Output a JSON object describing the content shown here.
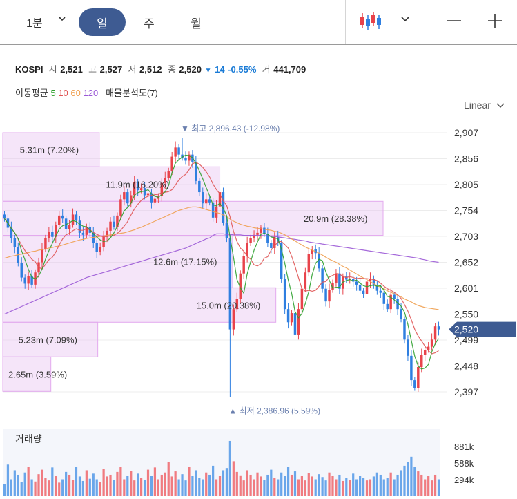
{
  "toolbar": {
    "period_select": "1분",
    "tabs": [
      {
        "label": "일",
        "active": true
      },
      {
        "label": "주",
        "active": false
      },
      {
        "label": "월",
        "active": false
      }
    ],
    "icons": [
      "candlestick-chart-icon",
      "chevron-down-icon",
      "zoom-out-icon",
      "zoom-in-icon"
    ]
  },
  "quote": {
    "symbol": "KOSPI",
    "open_label": "시",
    "open": "2,521",
    "high_label": "고",
    "high": "2,527",
    "low_label": "저",
    "low": "2,512",
    "close_label": "종",
    "close": "2,520",
    "change_arrow": "▼",
    "change": "14",
    "change_pct": "-0.55%",
    "volume_label": "거",
    "volume": "441,709"
  },
  "indicators": {
    "ma_label": "이동평균",
    "ma_periods": [
      {
        "label": "5",
        "color": "#2ca02c"
      },
      {
        "label": "10",
        "color": "#e05555"
      },
      {
        "label": "60",
        "color": "#f0a050"
      },
      {
        "label": "120",
        "color": "#9b59d6"
      }
    ],
    "profile_label": "매물분석도(7)"
  },
  "scale_mode": "Linear",
  "colors": {
    "up": "#e8434b",
    "down": "#2f7fe0",
    "accent": "#3e5b92",
    "profile": "#e9c6f1"
  },
  "chart_data": {
    "type": "candlestick",
    "y_ticks": [
      "2,907",
      "2,856",
      "2,805",
      "2,754",
      "2,703",
      "2,652",
      "2,601",
      "2,550",
      "2,499",
      "2,448",
      "2,397"
    ],
    "y_tick_values": [
      2907,
      2856,
      2805,
      2754,
      2703,
      2652,
      2601,
      2550,
      2499,
      2448,
      2397
    ],
    "ylim": [
      2378,
      2922
    ],
    "current_price": "2,520",
    "current_value": 2520,
    "max_annotation": {
      "text": "▼ 최고 2,896.43 (-12.98%)",
      "value": 2896.43,
      "bar_index": 52
    },
    "min_annotation": {
      "text": "▲ 최저 2,386.96 (5.59%)",
      "value": 2386.96,
      "bar_index": 66
    },
    "volume_profile": [
      {
        "label": "5.31m (7.20%)",
        "low": 2840,
        "high": 2907,
        "pct": 7.2
      },
      {
        "label": "11.9m (16.20%)",
        "low": 2772,
        "high": 2840,
        "pct": 16.2
      },
      {
        "label": "20.9m (28.38%)",
        "low": 2705,
        "high": 2772,
        "pct": 28.38
      },
      {
        "label": "12.6m (17.15%)",
        "low": 2602,
        "high": 2705,
        "pct": 17.15
      },
      {
        "label": "15.0m (20.38%)",
        "low": 2534,
        "high": 2602,
        "pct": 20.38
      },
      {
        "label": "5.23m (7.09%)",
        "low": 2466,
        "high": 2534,
        "pct": 7.09
      },
      {
        "label": "2.65m (3.59%)",
        "low": 2398,
        "high": 2466,
        "pct": 3.59
      }
    ],
    "closes": [
      2738,
      2720,
      2700,
      2682,
      2650,
      2622,
      2610,
      2625,
      2608,
      2632,
      2652,
      2678,
      2700,
      2712,
      2702,
      2726,
      2744,
      2738,
      2718,
      2726,
      2746,
      2734,
      2710,
      2706,
      2722,
      2710,
      2690,
      2672,
      2682,
      2702,
      2714,
      2732,
      2722,
      2744,
      2776,
      2790,
      2768,
      2784,
      2810,
      2794,
      2798,
      2784,
      2788,
      2770,
      2777,
      2782,
      2808,
      2818,
      2832,
      2860,
      2878,
      2864,
      2858,
      2852,
      2864,
      2850,
      2812,
      2790,
      2768,
      2776,
      2770,
      2740,
      2762,
      2790,
      2730,
      2700,
      2520,
      2560,
      2580,
      2630,
      2664,
      2690,
      2700,
      2706,
      2710,
      2720,
      2708,
      2690,
      2680,
      2702,
      2690,
      2620,
      2560,
      2534,
      2552,
      2510,
      2560,
      2600,
      2632,
      2668,
      2678,
      2670,
      2640,
      2600,
      2575,
      2598,
      2612,
      2630,
      2600,
      2624,
      2618,
      2620,
      2614,
      2608,
      2596,
      2590,
      2614,
      2620,
      2606,
      2596,
      2592,
      2570,
      2560,
      2588,
      2580,
      2560,
      2540,
      2500,
      2468,
      2420,
      2405,
      2446,
      2470,
      2480,
      2486,
      2500,
      2526,
      2520
    ],
    "ma": {
      "5": [
        2738,
        2729,
        2719,
        2710,
        2698,
        2675,
        2657,
        2638,
        2623,
        2619,
        2625,
        2639,
        2658,
        2675,
        2689,
        2704,
        2717,
        2724,
        2726,
        2730,
        2734,
        2732,
        2727,
        2723,
        2722,
        2716,
        2708,
        2702,
        2696,
        2693,
        2694,
        2700,
        2710,
        2723,
        2738,
        2753,
        2760,
        2768,
        2784,
        2789,
        2791,
        2792,
        2795,
        2787,
        2782,
        2780,
        2785,
        2791,
        2803,
        2828,
        2847,
        2854,
        2859,
        2863,
        2862,
        2858,
        2847,
        2832,
        2816,
        2799,
        2783,
        2765,
        2763,
        2768,
        2758,
        2744,
        2700,
        2662,
        2618,
        2602,
        2591,
        2629,
        2653,
        2676,
        2692,
        2707,
        2709,
        2707,
        2702,
        2700,
        2698,
        2678,
        2650,
        2617,
        2591,
        2555,
        2543,
        2551,
        2571,
        2594,
        2628,
        2650,
        2658,
        2655,
        2633,
        2617,
        2601,
        2603,
        2603,
        2613,
        2616,
        2618,
        2615,
        2617,
        2611,
        2606,
        2604,
        2606,
        2607,
        2605,
        2606,
        2597,
        2585,
        2583,
        2578,
        2572,
        2566,
        2554,
        2530,
        2498,
        2467,
        2448,
        2442,
        2444,
        2451,
        2476,
        2492,
        2502
      ],
      "10": [
        2738,
        2729,
        2719,
        2710,
        2698,
        2686,
        2675,
        2667,
        2658,
        2653,
        2642,
        2639,
        2648,
        2657,
        2662,
        2672,
        2686,
        2698,
        2706,
        2709,
        2714,
        2718,
        2715,
        2715,
        2718,
        2716,
        2711,
        2707,
        2704,
        2702,
        2703,
        2704,
        2705,
        2709,
        2715,
        2723,
        2732,
        2745,
        2757,
        2766,
        2774,
        2779,
        2782,
        2784,
        2785,
        2786,
        2789,
        2790,
        2791,
        2795,
        2804,
        2814,
        2821,
        2825,
        2834,
        2846,
        2849,
        2845,
        2839,
        2830,
        2820,
        2806,
        2795,
        2787,
        2773,
        2764,
        2741,
        2713,
        2693,
        2680,
        2674,
        2664,
        2658,
        2647,
        2645,
        2649,
        2660,
        2663,
        2676,
        2684,
        2692,
        2693,
        2687,
        2680,
        2664,
        2644,
        2622,
        2600,
        2595,
        2597,
        2595,
        2597,
        2605,
        2613,
        2614,
        2623,
        2626,
        2630,
        2629,
        2624,
        2622,
        2624,
        2622,
        2620,
        2621,
        2620,
        2620,
        2619,
        2618,
        2616,
        2611,
        2605,
        2600,
        2597,
        2593,
        2588,
        2581,
        2569,
        2556,
        2539,
        2520,
        2507,
        2497,
        2487,
        2478,
        2472,
        2474,
        2478
      ],
      "60": [
        2660,
        2662,
        2664,
        2665,
        2667,
        2668,
        2670,
        2671,
        2673,
        2674,
        2676,
        2677,
        2678,
        2680,
        2681,
        2683,
        2684,
        2686,
        2688,
        2690,
        2692,
        2694,
        2696,
        2697,
        2699,
        2700,
        2701,
        2702,
        2703,
        2704,
        2705,
        2706,
        2707,
        2708,
        2709,
        2710,
        2712,
        2714,
        2716,
        2719,
        2721,
        2724,
        2727,
        2730,
        2733,
        2736,
        2739,
        2742,
        2745,
        2748,
        2751,
        2754,
        2756,
        2758,
        2760,
        2761,
        2761,
        2760,
        2758,
        2756,
        2754,
        2752,
        2750,
        2748,
        2745,
        2742,
        2737,
        2733,
        2730,
        2727,
        2725,
        2723,
        2722,
        2720,
        2719,
        2718,
        2717,
        2716,
        2715,
        2713,
        2712,
        2709,
        2706,
        2702,
        2698,
        2694,
        2690,
        2686,
        2682,
        2679,
        2676,
        2673,
        2670,
        2666,
        2662,
        2658,
        2655,
        2652,
        2648,
        2644,
        2641,
        2637,
        2633,
        2629,
        2625,
        2621,
        2618,
        2614,
        2610,
        2606,
        2603,
        2600,
        2596,
        2593,
        2590,
        2587,
        2584,
        2580,
        2577,
        2574,
        2570,
        2567,
        2565,
        2563,
        2562,
        2561,
        2560,
        2559
      ],
      "120": [
        2550,
        2553,
        2556,
        2559,
        2562,
        2565,
        2568,
        2571,
        2574,
        2577,
        2580,
        2583,
        2586,
        2589,
        2592,
        2595,
        2598,
        2601,
        2604,
        2607,
        2610,
        2613,
        2616,
        2619,
        2622,
        2624,
        2626,
        2628,
        2630,
        2632,
        2634,
        2636,
        2638,
        2640,
        2642,
        2644,
        2646,
        2648,
        2650,
        2652,
        2654,
        2656,
        2658,
        2660,
        2662,
        2664,
        2666,
        2668,
        2670,
        2672,
        2674,
        2676,
        2678,
        2680,
        2683,
        2686,
        2689,
        2692,
        2695,
        2698,
        2700,
        2705,
        2708,
        2708,
        2708,
        2707,
        2707,
        2706,
        2706,
        2706,
        2705,
        2705,
        2705,
        2705,
        2705,
        2705,
        2704,
        2704,
        2703,
        2703,
        2702,
        2701,
        2700,
        2699,
        2698,
        2697,
        2696,
        2695,
        2694,
        2692,
        2691,
        2690,
        2689,
        2688,
        2687,
        2686,
        2685,
        2684,
        2683,
        2682,
        2681,
        2680,
        2679,
        2678,
        2677,
        2676,
        2675,
        2674,
        2673,
        2672,
        2671,
        2670,
        2669,
        2668,
        2667,
        2666,
        2665,
        2664,
        2663,
        2662,
        2661,
        2660,
        2658,
        2657,
        2655,
        2654,
        2653,
        2652
      ]
    },
    "volume_label": "거래량",
    "volume_ticks": [
      "881k",
      "588k",
      "294k"
    ],
    "volume_tick_values": [
      881,
      588,
      294
    ],
    "volume_ylim": [
      0,
      1200
    ],
    "volumes": [
      210,
      560,
      300,
      460,
      380,
      250,
      420,
      520,
      300,
      260,
      390,
      470,
      330,
      280,
      510,
      360,
      240,
      300,
      430,
      380,
      290,
      520,
      350,
      270,
      460,
      310,
      400,
      300,
      250,
      480,
      350,
      380,
      290,
      430,
      520,
      300,
      360,
      450,
      280,
      400,
      330,
      290,
      470,
      360,
      510,
      300,
      380,
      420,
      610,
      350,
      440,
      300,
      390,
      280,
      520,
      360,
      460,
      330,
      300,
      420,
      380,
      540,
      300,
      360,
      460,
      500,
      980,
      620,
      430,
      370,
      280,
      460,
      380,
      300,
      420,
      350,
      290,
      380,
      470,
      330,
      300,
      420,
      360,
      520,
      380,
      440,
      300,
      360,
      280,
      410,
      350,
      300,
      390,
      340,
      280,
      420,
      360,
      300,
      380,
      270,
      330,
      290,
      400,
      300,
      360,
      320,
      280,
      300,
      350,
      420,
      380,
      300,
      330,
      420,
      300,
      380,
      460,
      540,
      600,
      700,
      520,
      440,
      380,
      300,
      360,
      280,
      380,
      300
    ],
    "x_extent": [
      -0.5,
      127.5
    ]
  }
}
